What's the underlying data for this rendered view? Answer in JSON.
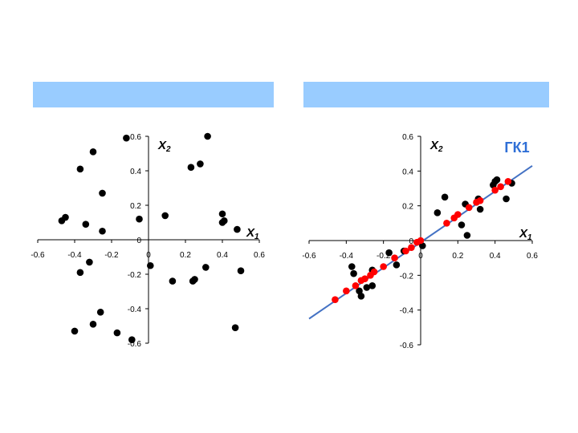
{
  "chart_data": [
    {
      "type": "scatter",
      "color": "#000000",
      "x": [
        -0.12,
        -0.3,
        0.32,
        -0.37,
        0.23,
        0.28,
        -0.25,
        -0.47,
        -0.45,
        -0.34,
        -0.05,
        0.09,
        -0.25,
        0.4,
        0.4,
        0.41,
        0.48,
        -0.32,
        -0.37,
        0.01,
        0.13,
        0.24,
        0.25,
        0.31,
        0.5,
        -0.26,
        -0.3,
        -0.4,
        -0.17,
        -0.09,
        0.47
      ],
      "values": [
        0.59,
        0.51,
        0.6,
        0.41,
        0.42,
        0.44,
        0.27,
        0.11,
        0.13,
        0.09,
        0.12,
        0.14,
        0.05,
        0.15,
        0.1,
        0.11,
        0.06,
        -0.13,
        -0.19,
        -0.15,
        -0.24,
        -0.24,
        -0.23,
        -0.16,
        -0.18,
        -0.42,
        -0.49,
        -0.53,
        -0.54,
        -0.58,
        -0.51
      ],
      "xlim": [
        -0.6,
        0.6
      ],
      "ylim": [
        -0.6,
        0.6
      ],
      "xticks": [
        -0.6,
        -0.4,
        -0.2,
        0,
        0.2,
        0.4,
        0.6
      ],
      "yticks": [
        -0.6,
        -0.4,
        -0.2,
        0,
        0.2,
        0.4,
        0.6
      ],
      "x_label": "X",
      "x_label_sub": "1",
      "y_label": "X",
      "y_label_sub": "2"
    },
    {
      "type": "scatter",
      "series": [
        {
          "color": "#000000",
          "x": [
            0.09,
            0.13,
            0.24,
            0.22,
            0.25,
            0.31,
            0.32,
            0.4,
            0.41,
            0.39,
            0.46,
            0.49,
            -0.17,
            -0.13,
            -0.09,
            0.01,
            -0.37,
            -0.26,
            -0.26,
            -0.33,
            -0.32,
            -0.29,
            -0.36
          ],
          "values": [
            0.16,
            0.25,
            0.21,
            0.09,
            0.03,
            0.24,
            0.18,
            0.34,
            0.35,
            0.32,
            0.24,
            0.33,
            -0.07,
            -0.14,
            -0.06,
            -0.03,
            -0.15,
            -0.17,
            -0.26,
            -0.29,
            -0.32,
            -0.27,
            -0.19
          ]
        },
        {
          "color": "#ff0000",
          "x": [
            -0.46,
            -0.4,
            -0.35,
            -0.32,
            -0.3,
            -0.27,
            -0.25,
            -0.2,
            -0.14,
            -0.08,
            -0.05,
            -0.02,
            0.0,
            0.14,
            0.18,
            0.2,
            0.26,
            0.3,
            0.32,
            0.4,
            0.43,
            0.47
          ],
          "values": [
            -0.34,
            -0.29,
            -0.26,
            -0.23,
            -0.22,
            -0.2,
            -0.18,
            -0.15,
            -0.1,
            -0.06,
            -0.04,
            -0.01,
            0.0,
            0.1,
            0.13,
            0.15,
            0.19,
            0.22,
            0.23,
            0.29,
            0.31,
            0.34
          ]
        }
      ],
      "fit_line": {
        "color": "#4472c4",
        "x": [
          -0.6,
          0.6
        ],
        "values": [
          -0.45,
          0.43
        ],
        "label": "ГК1",
        "label_color": "#2f6fd6"
      },
      "xlim": [
        -0.6,
        0.6
      ],
      "ylim": [
        -0.6,
        0.6
      ],
      "xticks": [
        -0.6,
        -0.4,
        -0.2,
        0,
        0.2,
        0.4,
        0.6
      ],
      "yticks": [
        -0.6,
        -0.4,
        -0.2,
        0,
        0.2,
        0.4,
        0.6
      ],
      "x_label": "X",
      "x_label_sub": "1",
      "y_label": "X",
      "y_label_sub": "2"
    }
  ]
}
